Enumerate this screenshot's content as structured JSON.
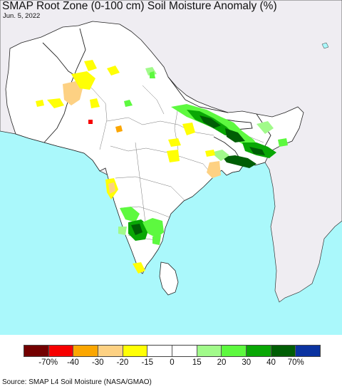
{
  "title": "SMAP Root Zone (0-100 cm) Soil Moisture Anomaly (%)",
  "date": "Jun. 5, 2022",
  "source": "Source: SMAP L4 Soil Moisture (NASA/GMAO)",
  "colors": {
    "ocean": "#aaf8fb",
    "land_outside": "#efedf2",
    "land_inside": "#ffffff",
    "border": "#333333"
  },
  "legend": {
    "colors": [
      "#730000",
      "#f60000",
      "#fba600",
      "#fdd183",
      "#ffff05",
      "#ffffff",
      "#ffffff",
      "#a1fa8a",
      "#5df93f",
      "#09a705",
      "#005e05",
      "#0b33a0"
    ],
    "tick_labels": [
      "-70%",
      "-40",
      "-30",
      "-20",
      "-15",
      "0",
      "15",
      "20",
      "30",
      "40",
      "70%"
    ]
  }
}
